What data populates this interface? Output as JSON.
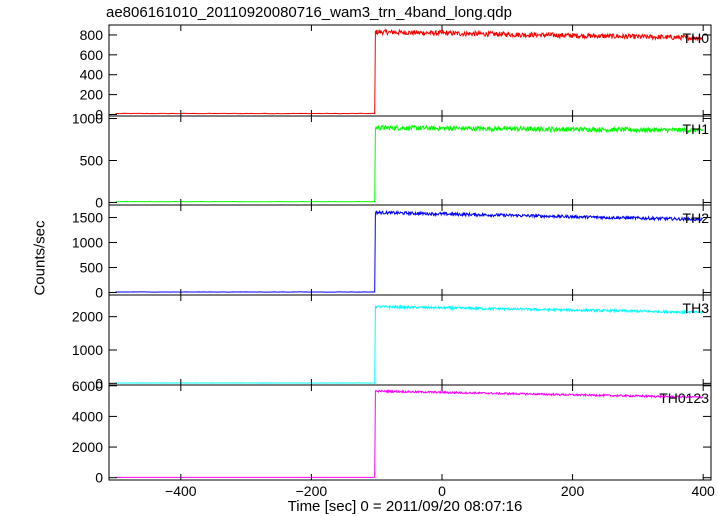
{
  "chart_data": {
    "type": "line",
    "title": "ae806161010_20110920080716_wam3_trn_4band_long.qdp",
    "xlabel": "Time [sec] 0 = 2011/09/20 08:07:16",
    "ylabel": "Counts/sec",
    "xlim": [
      -510,
      412
    ],
    "xticks": [
      -400,
      -200,
      0,
      200,
      400
    ],
    "step_time": -103,
    "series": [
      {
        "name": "TH0",
        "color": "#ff0000",
        "ylim": [
          -15,
          900
        ],
        "yticks": [
          0,
          200,
          400,
          600,
          800
        ],
        "pre_level": 10,
        "post_start": 830,
        "post_end": 770,
        "noise": 25
      },
      {
        "name": "TH1",
        "color": "#00ff00",
        "ylim": [
          -30,
          1030
        ],
        "yticks": [
          0,
          500,
          1000
        ],
        "pre_level": 10,
        "post_start": 890,
        "post_end": 860,
        "noise": 28
      },
      {
        "name": "TH2",
        "color": "#0000ff",
        "ylim": [
          -50,
          1750
        ],
        "yticks": [
          0,
          500,
          1000,
          1500
        ],
        "pre_level": 10,
        "post_start": 1600,
        "post_end": 1460,
        "noise": 30
      },
      {
        "name": "TH3",
        "color": "#00ffff",
        "ylim": [
          -50,
          2650
        ],
        "yticks": [
          0,
          1000,
          2000
        ],
        "pre_level": 10,
        "post_start": 2300,
        "post_end": 2130,
        "noise": 35
      },
      {
        "name": "TH0123",
        "color": "#ff00ff",
        "ylim": [
          -150,
          6050
        ],
        "yticks": [
          0,
          2000,
          4000,
          6000
        ],
        "pre_level": 20,
        "post_start": 5650,
        "post_end": 5250,
        "noise": 60
      }
    ]
  }
}
